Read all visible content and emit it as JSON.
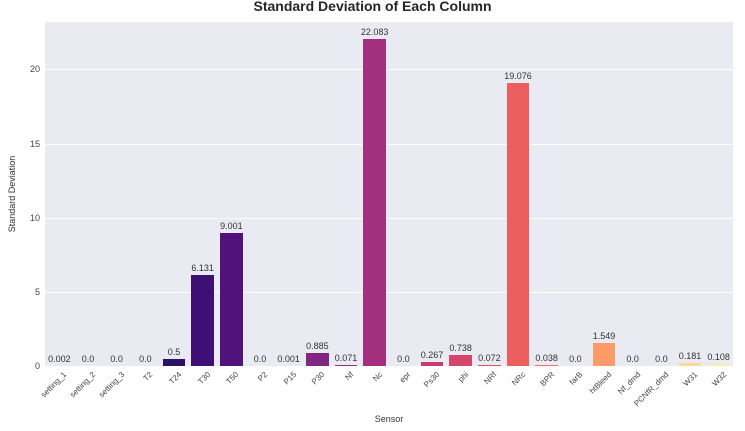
{
  "chart_data": {
    "type": "bar",
    "title": "Standard Deviation of Each Column",
    "xlabel": "Sensor",
    "ylabel": "Standard Deviation",
    "ylim": [
      0,
      23.2
    ],
    "yticks": [
      0,
      5,
      10,
      15,
      20
    ],
    "grid": true,
    "legend": null,
    "palette": "magma",
    "categories": [
      "setting_1",
      "setting_2",
      "setting_3",
      "T2",
      "T24",
      "T30",
      "T50",
      "P2",
      "P15",
      "P30",
      "Nf",
      "Nc",
      "epr",
      "Ps30",
      "phi",
      "NRf",
      "NRc",
      "BPR",
      "farB",
      "htBleed",
      "Nf_dmd",
      "PCNfR_dmd",
      "W31",
      "W32"
    ],
    "values": [
      0.002,
      0.0,
      0.0,
      0.0,
      0.5,
      6.131,
      9.001,
      0.0,
      0.001,
      0.885,
      0.071,
      22.083,
      0.0,
      0.267,
      0.738,
      0.072,
      19.076,
      0.038,
      0.0,
      1.549,
      0.0,
      0.0,
      0.181,
      0.108
    ],
    "labels": [
      "0.002",
      "0.0",
      "0.0",
      "0.0",
      "0.5",
      "6.131",
      "9.001",
      "0.0",
      "0.001",
      "0.885",
      "0.071",
      "22.083",
      "0.0",
      "0.267",
      "0.738",
      "0.072",
      "19.076",
      "0.038",
      "0.0",
      "1.549",
      "0.0",
      "0.0",
      "0.181",
      "0.108"
    ],
    "colors": [
      "#000004",
      "#050417",
      "#0f0b2c",
      "#1c1044",
      "#2f1163",
      "#3e0f74",
      "#51127c",
      "#61187f",
      "#721f81",
      "#832681",
      "#942c80",
      "#a3307e",
      "#b5367a",
      "#c53c74",
      "#d6456c",
      "#e44f64",
      "#ed5f5e",
      "#f4725c",
      "#f8875f",
      "#fb9b67",
      "#fcaf74",
      "#fdc486",
      "#fed799",
      "#fcebad"
    ]
  },
  "axis": {
    "ytick_labels": [
      "0",
      "5",
      "10",
      "15",
      "20"
    ]
  }
}
